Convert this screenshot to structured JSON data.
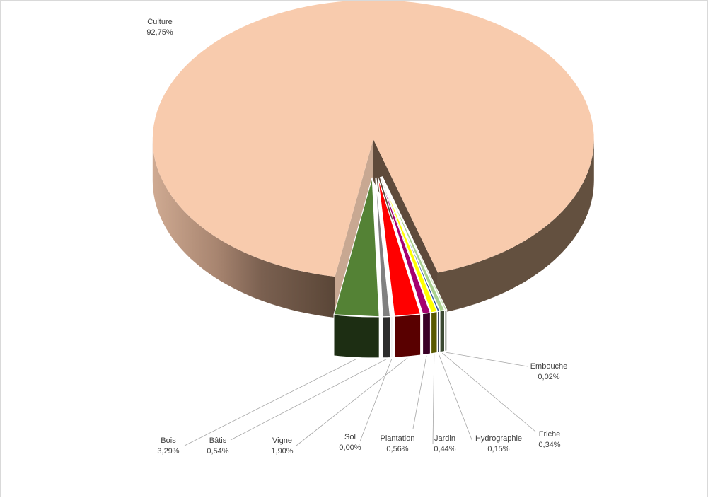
{
  "chart_data": {
    "type": "pie",
    "exploded": true,
    "three_d": true,
    "slices": [
      {
        "label": "Culture",
        "value_text": "92,75%",
        "value": 92.75,
        "color": "#F8CBAD"
      },
      {
        "label": "Bois",
        "value_text": "3,29%",
        "value": 3.29,
        "color": "#548235"
      },
      {
        "label": "Bâtis",
        "value_text": "0,54%",
        "value": 0.54,
        "color": "#808080"
      },
      {
        "label": "Sol",
        "value_text": "0,00%",
        "value": 0.0,
        "color": "#FFFFFF"
      },
      {
        "label": "Vigne",
        "value_text": "1,90%",
        "value": 1.9,
        "color": "#FF0000"
      },
      {
        "label": "Plantation",
        "value_text": "0,56%",
        "value": 0.56,
        "color": "#A50070"
      },
      {
        "label": "Jardin",
        "value_text": "0,44%",
        "value": 0.44,
        "color": "#FFFF00"
      },
      {
        "label": "Hydrographie",
        "value_text": "0,15%",
        "value": 0.15,
        "color": "#2F5597"
      },
      {
        "label": "Friche",
        "value_text": "0,34%",
        "value": 0.34,
        "color": "#A9D18E"
      },
      {
        "label": "Embouche",
        "value_text": "0,02%",
        "value": 0.02,
        "color": "#C5E0B4"
      }
    ]
  }
}
